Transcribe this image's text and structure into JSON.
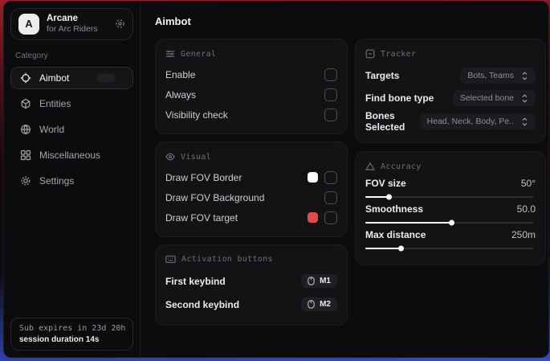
{
  "sidebar": {
    "logo": {
      "letter": "A",
      "title": "Arcane",
      "subtitle": "for Arc Riders"
    },
    "category_label": "Category",
    "items": [
      {
        "label": "Aimbot"
      },
      {
        "label": "Entities"
      },
      {
        "label": "World"
      },
      {
        "label": "Miscellaneous"
      },
      {
        "label": "Settings"
      }
    ],
    "subscription": {
      "expires": "Sub expires in 23d 20h",
      "session": "session duration 14s"
    }
  },
  "main": {
    "title": "Aimbot",
    "general": {
      "title": "General",
      "rows": [
        {
          "label": "Enable",
          "checked": false
        },
        {
          "label": "Always",
          "checked": false
        },
        {
          "label": "Visibility check",
          "checked": false
        }
      ]
    },
    "visual": {
      "title": "Visual",
      "rows": [
        {
          "label": "Draw FOV Border",
          "swatch": "#ffffff",
          "checked": false
        },
        {
          "label": "Draw FOV Background",
          "swatch": null,
          "checked": false
        },
        {
          "label": "Draw FOV target",
          "swatch": "#e5484d",
          "checked": false
        }
      ]
    },
    "activation": {
      "title": "Activation buttons",
      "rows": [
        {
          "label": "First keybind",
          "key": "M1"
        },
        {
          "label": "Second keybind",
          "key": "M2"
        }
      ]
    },
    "tracker": {
      "title": "Tracker",
      "rows": [
        {
          "label": "Targets",
          "value": "Bots, Teams"
        },
        {
          "label": "Find bone type",
          "value": "Selected bone"
        },
        {
          "label": "Bones Selected",
          "value": "Head, Neck, Body, Pe.."
        }
      ]
    },
    "accuracy": {
      "title": "Accuracy",
      "rows": [
        {
          "label": "FOV size",
          "value": "50°",
          "percent": 14
        },
        {
          "label": "Smoothness",
          "value": "50.0",
          "percent": 51
        },
        {
          "label": "Max distance",
          "value": "250m",
          "percent": 21
        }
      ]
    }
  },
  "colors": {
    "swatch_white": "#ffffff",
    "swatch_red": "#e5484d"
  }
}
